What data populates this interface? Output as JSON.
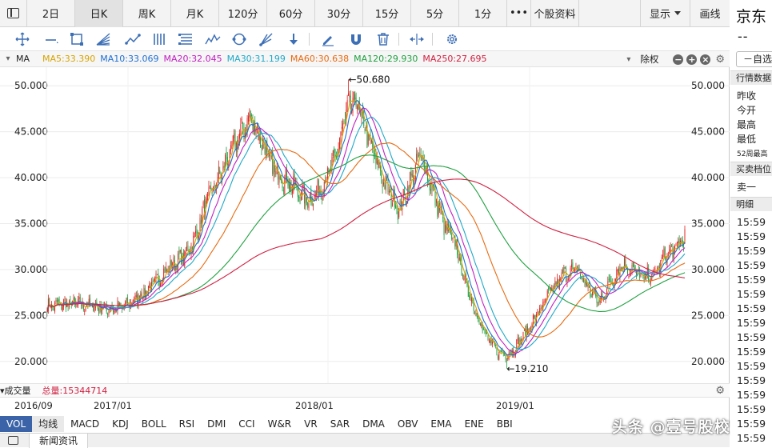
{
  "period_tabs": [
    {
      "label": "2日",
      "w": 60,
      "active": false
    },
    {
      "label": "日K",
      "w": 60,
      "active": true
    },
    {
      "label": "周K",
      "w": 60,
      "active": false
    },
    {
      "label": "月K",
      "w": 60,
      "active": false
    },
    {
      "label": "120分",
      "w": 60,
      "active": false
    },
    {
      "label": "60分",
      "w": 60,
      "active": false
    },
    {
      "label": "30分",
      "w": 60,
      "active": false
    },
    {
      "label": "15分",
      "w": 60,
      "active": false
    },
    {
      "label": "5分",
      "w": 60,
      "active": false
    },
    {
      "label": "1分",
      "w": 60,
      "active": false
    },
    {
      "label": "•••",
      "w": 30,
      "active": false
    },
    {
      "label": "个股资料",
      "w": 60,
      "active": false
    }
  ],
  "right_tabs": {
    "display": "显示",
    "draw": "画线"
  },
  "ma_bar": {
    "label": "MA",
    "items": [
      {
        "text": "MA5:33.390",
        "color": "#d6a400"
      },
      {
        "text": "MA10:33.069",
        "color": "#1f6fd4"
      },
      {
        "text": "MA20:32.045",
        "color": "#c020c0"
      },
      {
        "text": "MA30:31.199",
        "color": "#20a8c8"
      },
      {
        "text": "MA60:30.638",
        "color": "#e86a10"
      },
      {
        "text": "MA120:29.930",
        "color": "#20a040"
      },
      {
        "text": "MA250:27.695",
        "color": "#d02040"
      }
    ],
    "adjust": "除权"
  },
  "chart_data": {
    "type": "candlestick",
    "y_ticks": [
      "50.000",
      "45.000",
      "40.000",
      "35.000",
      "30.000",
      "25.000",
      "20.000"
    ],
    "y_values": [
      50,
      45,
      40,
      35,
      30,
      25,
      20
    ],
    "ylim": [
      18.5,
      51.5
    ],
    "x_labels": [
      "2016/09",
      "2017/01",
      "2018/01",
      "2019/01"
    ],
    "high_annotation": {
      "text": "←50.680",
      "value": 50.68
    },
    "low_annotation": {
      "text": "←19.210",
      "value": 19.21
    },
    "trend": [
      [
        0,
        26.0
      ],
      [
        20,
        26.3
      ],
      [
        40,
        26.1
      ],
      [
        55,
        25.7
      ],
      [
        70,
        25.9
      ],
      [
        85,
        27.2
      ],
      [
        100,
        28.8
      ],
      [
        112,
        30.4
      ],
      [
        125,
        31.5
      ],
      [
        135,
        33.5
      ],
      [
        145,
        37.5
      ],
      [
        158,
        40.5
      ],
      [
        170,
        43.5
      ],
      [
        185,
        46.5
      ],
      [
        195,
        44.0
      ],
      [
        205,
        41.0
      ],
      [
        215,
        40.0
      ],
      [
        228,
        38.5
      ],
      [
        238,
        37.5
      ],
      [
        250,
        39.0
      ],
      [
        262,
        42.0
      ],
      [
        272,
        47.0
      ],
      [
        280,
        48.5
      ],
      [
        290,
        45.0
      ],
      [
        300,
        41.5
      ],
      [
        310,
        38.5
      ],
      [
        320,
        36.5
      ],
      [
        330,
        39.5
      ],
      [
        340,
        42.5
      ],
      [
        352,
        38.0
      ],
      [
        362,
        34.5
      ],
      [
        372,
        32.5
      ],
      [
        380,
        28.5
      ],
      [
        390,
        25.5
      ],
      [
        400,
        22.5
      ],
      [
        410,
        21.0
      ],
      [
        420,
        20.8
      ],
      [
        432,
        22.5
      ],
      [
        445,
        25.0
      ],
      [
        458,
        27.5
      ],
      [
        470,
        29.5
      ],
      [
        482,
        30.0
      ],
      [
        492,
        28.0
      ],
      [
        502,
        26.5
      ],
      [
        512,
        28.5
      ],
      [
        522,
        30.5
      ],
      [
        532,
        30.0
      ],
      [
        542,
        29.0
      ],
      [
        552,
        29.5
      ],
      [
        562,
        31.5
      ],
      [
        572,
        32.3
      ],
      [
        580,
        33.6
      ]
    ],
    "ma_specs": [
      {
        "name": "MA5",
        "n": 5,
        "color": "#d6a400"
      },
      {
        "name": "MA10",
        "n": 10,
        "color": "#1f6fd4"
      },
      {
        "name": "MA20",
        "n": 20,
        "color": "#c020c0"
      },
      {
        "name": "MA30",
        "n": 30,
        "color": "#20a8c8"
      },
      {
        "name": "MA60",
        "n": 60,
        "color": "#e86a10"
      },
      {
        "name": "MA120",
        "n": 120,
        "color": "#20a040"
      },
      {
        "name": "MA250",
        "n": 250,
        "color": "#d02040"
      }
    ],
    "up_color": "#e02020",
    "down_color": "#1a9a3a",
    "grid": true
  },
  "volume_bar": {
    "label": "成交量",
    "total_label": "总量:15344714"
  },
  "indicators": [
    "VOL",
    "均线",
    "MACD",
    "KDJ",
    "BOLL",
    "RSI",
    "DMI",
    "CCI",
    "W&R",
    "VR",
    "SAR",
    "DMA",
    "OBV",
    "EMA",
    "ENE",
    "BBI"
  ],
  "news_tab": "新闻资讯",
  "watermark": "头条 @壹号股校",
  "side": {
    "name": "京东",
    "dash": "--",
    "fav": "－自选",
    "sec_quote": "行情数据",
    "rows": [
      "昨收",
      "今开",
      "最高",
      "最低"
    ],
    "row_small": "52周最高",
    "sec_orderbook": "买卖档位",
    "sell1": "卖一",
    "sec_detail": "明细",
    "ticks": [
      "15:59",
      "15:59",
      "15:59",
      "15:59",
      "15:59",
      "15:59",
      "15:59",
      "15:59",
      "15:59",
      "15:59",
      "15:59",
      "15:59",
      "15:59",
      "15:59",
      "15:59",
      "15:59",
      "15:59"
    ]
  }
}
